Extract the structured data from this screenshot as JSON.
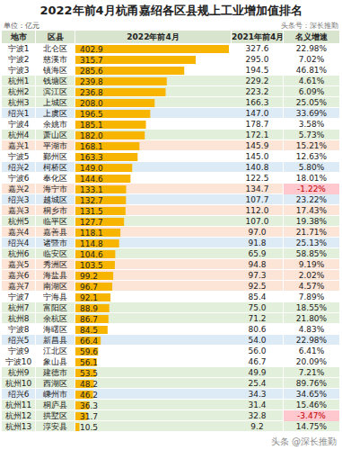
{
  "title": "2022年前4月杭甬嘉绍各区县规上工业增加值排名",
  "unit": "单位：亿元",
  "source": "头条号：深长推勤",
  "footer": "头条 @深长推勤",
  "table": {
    "columns": [
      "地市",
      "区县",
      "2022年前4月",
      "2021年前4月",
      "名义增速"
    ],
    "cities": [
      "宁波1",
      "宁波2",
      "宁波3",
      "杭州1",
      "杭州2",
      "杭州3",
      "绍兴1",
      "宁波4",
      "杭州4",
      "嘉兴1",
      "宁波5",
      "绍兴2",
      "宁波6",
      "嘉兴2",
      "绍兴3",
      "嘉兴3",
      "杭州5",
      "嘉兴4",
      "绍兴4",
      "杭州6",
      "嘉兴5",
      "嘉兴6",
      "嘉兴7",
      "宁波7",
      "杭州7",
      "杭州8",
      "宁波8",
      "绍兴5",
      "宁波9",
      "宁波10",
      "杭州9",
      "杭州10",
      "绍兴6",
      "杭州11",
      "杭州12",
      "杭州13"
    ],
    "prev": [
      "327.6",
      "295.0",
      "194.5",
      "229.2",
      "223.2",
      "166.3",
      "147.0",
      "178.7",
      "172.1",
      "145.9",
      "145.0",
      "140.8",
      "122.5",
      "134.7",
      "107.7",
      "112.0",
      "107.0",
      "97.0",
      "91.8",
      "65.9",
      "94.8",
      "97.3",
      "92.5",
      "85.4",
      "75.0",
      "71.2",
      "80.6",
      "54.0",
      "56.0",
      "46.7",
      "49.9",
      "25.4",
      "34.3",
      "31.4",
      "32.8",
      "9.2"
    ],
    "growth": [
      "22.98%",
      "7.02%",
      "46.81%",
      "4.61%",
      "6.09%",
      "25.05%",
      "33.69%",
      "3.58%",
      "5.73%",
      "15.21%",
      "12.63%",
      "5.80%",
      "18.01%",
      "-1.22%",
      "23.22%",
      "17.43%",
      "19.38%",
      "21.71%",
      "25.13%",
      "58.85%",
      "9.19%",
      "2.02%",
      "4.57%",
      "7.89%",
      "18.55%",
      "21.80%",
      "4.83%",
      "22.98%",
      "6.41%",
      "20.09%",
      "7.21%",
      "89.76%",
      "34.65%",
      "15.46%",
      "-3.47%",
      "14.75%"
    ]
  },
  "chart_data": {
    "type": "bar",
    "orientation": "horizontal",
    "categories": [
      "北仑区",
      "慈溪市",
      "镇海区",
      "钱塘区",
      "滨江区",
      "上城区",
      "上虞区",
      "余姚市",
      "萧山区",
      "平湖市",
      "鄞州区",
      "柯桥区",
      "奉化区",
      "海宁市",
      "越城区",
      "桐乡市",
      "临平区",
      "嘉善县",
      "诸暨市",
      "临安区",
      "秀洲区",
      "海盐县",
      "南湖区",
      "宁海县",
      "富阳区",
      "余杭区",
      "海曙区",
      "新昌县",
      "江北区",
      "象山县",
      "建德市",
      "西湖区",
      "嵊州市",
      "桐庐县",
      "拱墅区",
      "淳安县"
    ],
    "values": [
      402.9,
      315.7,
      285.6,
      239.8,
      236.8,
      208.0,
      196.5,
      185.1,
      182.0,
      168.1,
      163.3,
      149.0,
      144.6,
      133.1,
      132.7,
      131.5,
      127.7,
      118.1,
      114.8,
      104.6,
      103.5,
      99.2,
      96.7,
      92.1,
      88.9,
      86.7,
      84.5,
      66.4,
      59.6,
      56.1,
      53.5,
      48.2,
      46.2,
      36.3,
      31.7,
      10.5
    ],
    "value_labels": [
      "402.9",
      "315.7",
      "285.6",
      "239.8",
      "236.8",
      "208.0",
      "196.5",
      "185.1",
      "182.0",
      "168.1",
      "163.3",
      "149.0",
      "144.6",
      "133.1",
      "132.7",
      "131.5",
      "127.7",
      "118.1",
      "114.8",
      "104.6",
      "103.5",
      "99.2",
      "96.7",
      "92.1",
      "88.9",
      "86.7",
      "84.5",
      "66.4",
      "59.6",
      "56.1",
      "53.5",
      "48.2",
      "46.2",
      "36.3",
      "31.7",
      "10.5"
    ],
    "color": "#f7b500",
    "xlim": [
      0,
      410
    ],
    "data_labels": true,
    "tick_labels": false
  }
}
